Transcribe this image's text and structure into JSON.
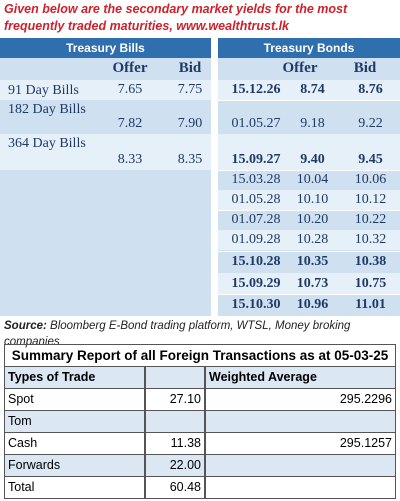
{
  "header": {
    "note": "Given below are the secondary market yields for the most frequently traded maturities, www.wealthtrust.lk"
  },
  "yields": {
    "bills_title": "Treasury Bills",
    "bonds_title": "Treasury Bonds",
    "bills_columns": [
      "Offer",
      "Bid"
    ],
    "bonds_columns": [
      "Offer",
      "Bid"
    ],
    "bills": [
      [
        "91 Day Bills",
        "7.65",
        "7.75"
      ],
      [
        "182 Day Bills",
        "7.82",
        "7.90"
      ],
      [
        "364 Day Bills",
        "8.33",
        "8.35"
      ]
    ],
    "bonds": [
      [
        "15.12.26",
        "8.74",
        "8.76"
      ],
      [
        "01.05.27",
        "9.18",
        "9.22"
      ],
      [
        "15.09.27",
        "9.40",
        "9.45"
      ],
      [
        "15.03.28",
        "10.04",
        "10.06"
      ],
      [
        "01.05.28",
        "10.10",
        "10.12"
      ],
      [
        "01.07.28",
        "10.20",
        "10.22"
      ],
      [
        "01.09.28",
        "10.28",
        "10.32"
      ],
      [
        "15.10.28",
        "10.35",
        "10.38"
      ],
      [
        "15.09.29",
        "10.73",
        "10.75"
      ],
      [
        "15.10.30",
        "10.96",
        "11.01"
      ]
    ],
    "source_label": "Source:",
    "source": "Bloomberg E-Bond trading platform, WTSL, Money broking companies"
  },
  "summary": {
    "title": "Summary Report of all Foreign Transactions as at 05-03-25",
    "columns": [
      "Types of Trade",
      "Weighted Average"
    ],
    "rows": [
      [
        "Spot",
        "27.10",
        "295.2296"
      ],
      [
        "Tom"
      ],
      [
        "Cash",
        "11.38",
        "295.1257"
      ],
      [
        "Forwards",
        "22.00"
      ],
      [
        "Total",
        "60.48"
      ]
    ]
  }
}
